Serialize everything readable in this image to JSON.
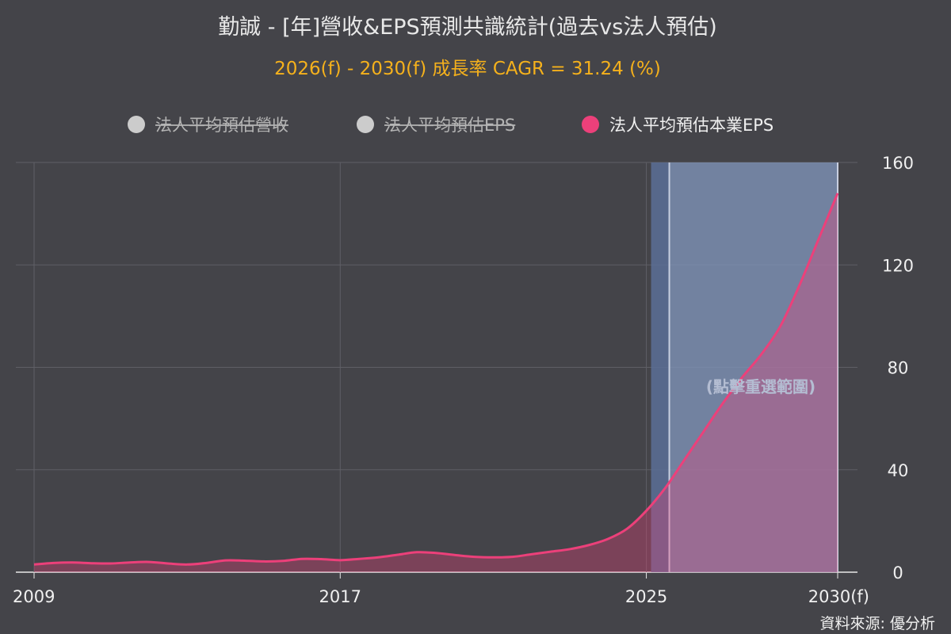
{
  "chart_data": {
    "type": "area",
    "title": "勤誠 - [年]營收&EPS預測共識統計(過去vs法人預估)",
    "subtitle": "2026(f) - 2030(f) 成長率 CAGR = 31.24 (%)",
    "x_tick_labels": [
      "2009",
      "2017",
      "2025",
      "2030(f)"
    ],
    "y_tick_labels": [
      "0",
      "40",
      "80",
      "120",
      "160"
    ],
    "ylim": [
      0,
      160
    ],
    "xlim": [
      2009,
      2030
    ],
    "grid": true,
    "legend_position": "top",
    "legend": [
      {
        "name": "法人平均預估營收",
        "hidden": true,
        "color": "#cccccc"
      },
      {
        "name": "法人平均預估EPS",
        "hidden": true,
        "color": "#cccccc"
      },
      {
        "name": "法人平均預估本業EPS",
        "hidden": false,
        "color": "#ec407a"
      }
    ],
    "series": [
      {
        "name": "法人平均預估本業EPS",
        "color": "#ec407a",
        "x": [
          2009,
          2009.5,
          2010,
          2010.5,
          2011,
          2011.5,
          2012,
          2012.5,
          2013,
          2013.5,
          2014,
          2014.5,
          2015,
          2015.5,
          2016,
          2016.5,
          2017,
          2017.5,
          2018,
          2018.5,
          2019,
          2019.5,
          2020,
          2020.5,
          2021,
          2021.5,
          2022,
          2022.5,
          2023,
          2023.5,
          2024,
          2024.5,
          2025,
          2025.5,
          2026,
          2026.5,
          2027,
          2027.5,
          2028,
          2028.5,
          2029,
          2029.5,
          2030
        ],
        "y": [
          3,
          3.6,
          3.8,
          3.5,
          3.4,
          3.8,
          4,
          3.4,
          3,
          3.6,
          4.6,
          4.5,
          4.2,
          4.4,
          5.2,
          5.1,
          4.7,
          5.2,
          5.8,
          6.8,
          7.8,
          7.5,
          6.7,
          6,
          5.8,
          6,
          7,
          8,
          9,
          10.6,
          13,
          17,
          24,
          33,
          44,
          55,
          66,
          76,
          85,
          96,
          112,
          130,
          148
        ]
      }
    ],
    "selection_band": {
      "x_start": 2025.6,
      "x_end": 2030
    },
    "annotation": "(點擊重選範圍)",
    "source": "資料來源: 優分析"
  }
}
